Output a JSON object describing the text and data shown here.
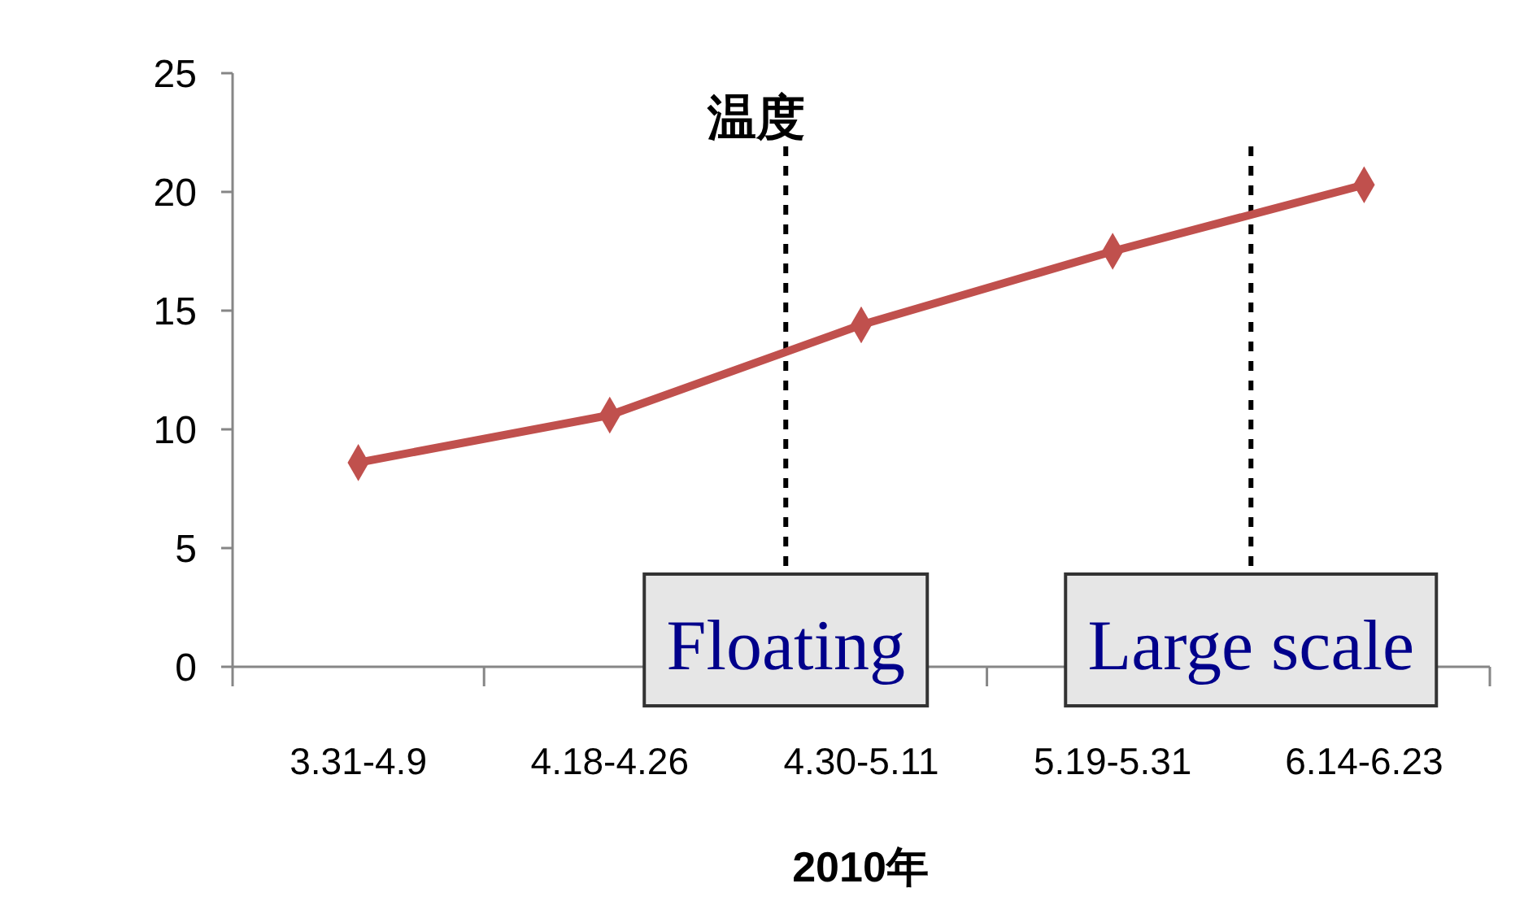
{
  "chart_data": {
    "type": "line",
    "title": "温度",
    "xlabel": "2010年",
    "categories": [
      "3.31-4.9",
      "4.18-4.26",
      "4.30-5.11",
      "5.19-5.31",
      "6.14-6.23"
    ],
    "series": [
      {
        "color": "#c0504d",
        "values": [
          8.6,
          10.6,
          14.4,
          17.5,
          20.3
        ]
      }
    ],
    "ylim": [
      0,
      25
    ],
    "yticks": [
      0,
      5,
      10,
      15,
      20,
      25
    ],
    "grid": false,
    "marker": "diamond",
    "line_style": "solid",
    "annotations": [
      "Floating",
      "Large scale"
    ]
  }
}
